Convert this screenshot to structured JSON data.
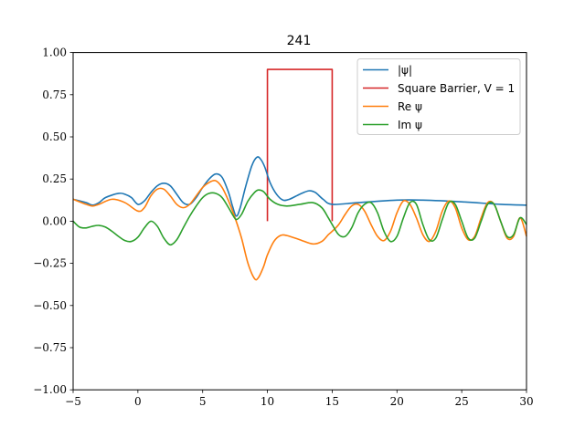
{
  "chart_data": {
    "type": "line",
    "title": "241",
    "xlabel": "",
    "ylabel": "",
    "xlim": [
      -5,
      30
    ],
    "ylim": [
      -1.0,
      1.0
    ],
    "xticks": [
      -5,
      0,
      5,
      10,
      15,
      20,
      25,
      30
    ],
    "yticks": [
      -1.0,
      -0.75,
      -0.5,
      -0.25,
      0.0,
      0.25,
      0.5,
      0.75,
      1.0
    ],
    "xtick_labels": [
      "−5",
      "0",
      "5",
      "10",
      "15",
      "20",
      "25",
      "30"
    ],
    "ytick_labels": [
      "−1.00",
      "−0.75",
      "−0.50",
      "−0.25",
      "0.00",
      "0.25",
      "0.50",
      "0.75",
      "1.00"
    ],
    "grid": false,
    "legend_position": "top-right",
    "series": [
      {
        "name": "|ψ|",
        "color": "#1f77b4",
        "points": [
          [
            -5,
            0.13
          ],
          [
            -4,
            0.11
          ],
          [
            -3.5,
            0.095
          ],
          [
            -3,
            0.11
          ],
          [
            -2.5,
            0.14
          ],
          [
            -1.5,
            0.165
          ],
          [
            -1,
            0.16
          ],
          [
            -0.5,
            0.14
          ],
          [
            0,
            0.1
          ],
          [
            0.5,
            0.12
          ],
          [
            1,
            0.17
          ],
          [
            1.5,
            0.21
          ],
          [
            2,
            0.225
          ],
          [
            2.5,
            0.21
          ],
          [
            3,
            0.16
          ],
          [
            3.5,
            0.11
          ],
          [
            4,
            0.1
          ],
          [
            4.5,
            0.14
          ],
          [
            5,
            0.2
          ],
          [
            5.5,
            0.25
          ],
          [
            6,
            0.28
          ],
          [
            6.5,
            0.26
          ],
          [
            7,
            0.17
          ],
          [
            7.3,
            0.09
          ],
          [
            7.6,
            0.03
          ],
          [
            7.9,
            0.08
          ],
          [
            8.3,
            0.2
          ],
          [
            8.8,
            0.33
          ],
          [
            9.2,
            0.38
          ],
          [
            9.5,
            0.365
          ],
          [
            9.8,
            0.32
          ],
          [
            10.2,
            0.23
          ],
          [
            10.7,
            0.16
          ],
          [
            11.2,
            0.125
          ],
          [
            11.7,
            0.13
          ],
          [
            12.5,
            0.16
          ],
          [
            13.2,
            0.18
          ],
          [
            13.7,
            0.17
          ],
          [
            14.3,
            0.13
          ],
          [
            15,
            0.1
          ],
          [
            17,
            0.11
          ],
          [
            20,
            0.125
          ],
          [
            22,
            0.125
          ],
          [
            25,
            0.115
          ],
          [
            28,
            0.1
          ],
          [
            30,
            0.095
          ]
        ]
      },
      {
        "name": "Square Barrier, V = 1",
        "color": "#d62728",
        "points": [
          [
            10,
            0
          ],
          [
            10,
            0.9
          ],
          [
            15,
            0.9
          ],
          [
            15,
            0
          ]
        ]
      },
      {
        "name": "Re ψ",
        "color": "#ff7f0e",
        "points": [
          [
            -5,
            0.13
          ],
          [
            -4,
            0.1
          ],
          [
            -3.5,
            0.09
          ],
          [
            -3,
            0.1
          ],
          [
            -2,
            0.13
          ],
          [
            -1,
            0.11
          ],
          [
            0,
            0.06
          ],
          [
            0.5,
            0.08
          ],
          [
            1,
            0.15
          ],
          [
            1.5,
            0.19
          ],
          [
            2,
            0.19
          ],
          [
            2.5,
            0.15
          ],
          [
            3,
            0.1
          ],
          [
            3.5,
            0.08
          ],
          [
            4,
            0.1
          ],
          [
            4.5,
            0.15
          ],
          [
            5,
            0.2
          ],
          [
            5.5,
            0.23
          ],
          [
            6,
            0.24
          ],
          [
            6.5,
            0.2
          ],
          [
            7,
            0.12
          ],
          [
            7.5,
            0.02
          ],
          [
            8,
            -0.1
          ],
          [
            8.5,
            -0.25
          ],
          [
            9,
            -0.34
          ],
          [
            9.3,
            -0.335
          ],
          [
            9.7,
            -0.27
          ],
          [
            10,
            -0.2
          ],
          [
            10.5,
            -0.12
          ],
          [
            11,
            -0.085
          ],
          [
            11.5,
            -0.085
          ],
          [
            12.5,
            -0.11
          ],
          [
            13.5,
            -0.135
          ],
          [
            14.2,
            -0.12
          ],
          [
            14.7,
            -0.08
          ],
          [
            15,
            -0.06
          ],
          [
            15.5,
            -0.02
          ],
          [
            16,
            0.04
          ],
          [
            16.5,
            0.09
          ],
          [
            17,
            0.1
          ],
          [
            17.5,
            0.06
          ],
          [
            18,
            -0.02
          ],
          [
            18.5,
            -0.09
          ],
          [
            19,
            -0.115
          ],
          [
            19.5,
            -0.06
          ],
          [
            20,
            0.05
          ],
          [
            20.5,
            0.12
          ],
          [
            21,
            0.1
          ],
          [
            21.5,
            0.02
          ],
          [
            22,
            -0.08
          ],
          [
            22.5,
            -0.12
          ],
          [
            23,
            -0.06
          ],
          [
            23.5,
            0.06
          ],
          [
            24,
            0.12
          ],
          [
            24.5,
            0.08
          ],
          [
            25,
            -0.04
          ],
          [
            25.5,
            -0.11
          ],
          [
            26,
            -0.09
          ],
          [
            26.5,
            0.02
          ],
          [
            27,
            0.11
          ],
          [
            27.5,
            0.1
          ],
          [
            28,
            0.0
          ],
          [
            28.5,
            -0.1
          ],
          [
            29,
            -0.09
          ],
          [
            29.5,
            0.02
          ],
          [
            30,
            -0.09
          ]
        ]
      },
      {
        "name": "Im ψ",
        "color": "#2ca02c",
        "points": [
          [
            -5,
            0.0
          ],
          [
            -4.5,
            -0.035
          ],
          [
            -4,
            -0.04
          ],
          [
            -3.5,
            -0.03
          ],
          [
            -3,
            -0.025
          ],
          [
            -2.5,
            -0.035
          ],
          [
            -2,
            -0.06
          ],
          [
            -1.5,
            -0.09
          ],
          [
            -1,
            -0.115
          ],
          [
            -0.5,
            -0.12
          ],
          [
            0,
            -0.095
          ],
          [
            0.5,
            -0.04
          ],
          [
            1,
            0.0
          ],
          [
            1.5,
            -0.03
          ],
          [
            2,
            -0.1
          ],
          [
            2.5,
            -0.14
          ],
          [
            3,
            -0.11
          ],
          [
            3.5,
            -0.04
          ],
          [
            4,
            0.03
          ],
          [
            4.5,
            0.09
          ],
          [
            5,
            0.14
          ],
          [
            5.5,
            0.165
          ],
          [
            6,
            0.165
          ],
          [
            6.5,
            0.14
          ],
          [
            7,
            0.08
          ],
          [
            7.3,
            0.04
          ],
          [
            7.6,
            0.01
          ],
          [
            8,
            0.04
          ],
          [
            8.5,
            0.12
          ],
          [
            9,
            0.17
          ],
          [
            9.3,
            0.185
          ],
          [
            9.7,
            0.175
          ],
          [
            10.2,
            0.13
          ],
          [
            10.8,
            0.1
          ],
          [
            11.5,
            0.09
          ],
          [
            12.5,
            0.1
          ],
          [
            13.5,
            0.11
          ],
          [
            14.2,
            0.08
          ],
          [
            14.7,
            0.02
          ],
          [
            15,
            -0.02
          ],
          [
            15.5,
            -0.08
          ],
          [
            16,
            -0.09
          ],
          [
            16.5,
            -0.04
          ],
          [
            17,
            0.05
          ],
          [
            17.5,
            0.1
          ],
          [
            18,
            0.11
          ],
          [
            18.5,
            0.05
          ],
          [
            19,
            -0.06
          ],
          [
            19.5,
            -0.12
          ],
          [
            20,
            -0.09
          ],
          [
            20.5,
            0.02
          ],
          [
            21,
            0.11
          ],
          [
            21.5,
            0.1
          ],
          [
            22,
            -0.02
          ],
          [
            22.5,
            -0.11
          ],
          [
            23,
            -0.1
          ],
          [
            23.5,
            0.01
          ],
          [
            24,
            0.11
          ],
          [
            24.5,
            0.1
          ],
          [
            25,
            0.0
          ],
          [
            25.5,
            -0.1
          ],
          [
            26,
            -0.1
          ],
          [
            26.5,
            0.0
          ],
          [
            27,
            0.1
          ],
          [
            27.5,
            0.1
          ],
          [
            28,
            0.0
          ],
          [
            28.5,
            -0.09
          ],
          [
            29,
            -0.08
          ],
          [
            29.5,
            0.02
          ],
          [
            30,
            -0.02
          ]
        ]
      }
    ]
  }
}
